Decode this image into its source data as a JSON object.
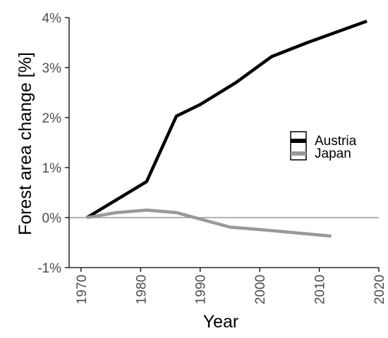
{
  "chart_data": {
    "type": "line",
    "title": "",
    "xlabel": "Year",
    "ylabel": "Forest area change [%]",
    "xlim": [
      1968,
      2020
    ],
    "ylim": [
      -1,
      4
    ],
    "x_ticks": [
      1970,
      1980,
      1990,
      2000,
      2010,
      2020
    ],
    "x_tick_labels": [
      "1970",
      "1980",
      "1990",
      "2000",
      "2010",
      "2020"
    ],
    "y_ticks": [
      -1,
      0,
      1,
      2,
      3,
      4
    ],
    "y_tick_labels": [
      "-1%",
      "0%",
      "1%",
      "2%",
      "3%",
      "4%"
    ],
    "grid": false,
    "legend_position": "right",
    "reference_line": {
      "y": 0,
      "color": "#b3b3b3"
    },
    "series": [
      {
        "name": "Austria",
        "color": "#000000",
        "points": [
          [
            1971,
            0.0
          ],
          [
            1981,
            0.72
          ],
          [
            1986,
            2.03
          ],
          [
            1990,
            2.26
          ],
          [
            1996,
            2.7
          ],
          [
            2002,
            3.22
          ],
          [
            2008,
            3.5
          ],
          [
            2018,
            3.93
          ]
        ]
      },
      {
        "name": "Japan",
        "color": "#999999",
        "points": [
          [
            1971,
            0.0
          ],
          [
            1976,
            0.1
          ],
          [
            1981,
            0.15
          ],
          [
            1986,
            0.1
          ],
          [
            1990,
            -0.03
          ],
          [
            1995,
            -0.19
          ],
          [
            2000,
            -0.24
          ],
          [
            2012,
            -0.37
          ]
        ]
      }
    ]
  }
}
